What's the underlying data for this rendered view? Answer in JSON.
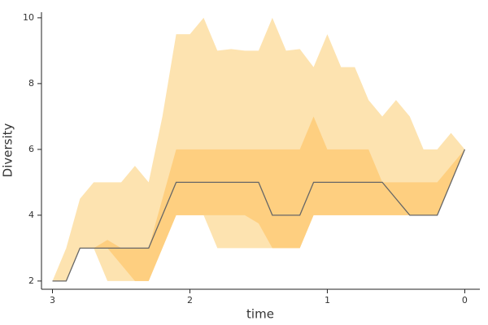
{
  "chart_data": {
    "type": "band",
    "xlabel": "time",
    "ylabel": "Diversity",
    "x": [
      3.0,
      2.9,
      2.8,
      2.7,
      2.6,
      2.5,
      2.4,
      2.3,
      2.2,
      2.1,
      2.0,
      1.9,
      1.8,
      1.7,
      1.6,
      1.5,
      1.4,
      1.3,
      1.2,
      1.1,
      1.0,
      0.9,
      0.8,
      0.7,
      0.6,
      0.5,
      0.4,
      0.3,
      0.2,
      0.1,
      0.0
    ],
    "bands": [
      {
        "color": "#fde3b0",
        "upper": [
          2,
          3,
          4.5,
          5,
          5,
          5,
          5.5,
          5,
          7,
          9.5,
          9.5,
          10,
          9,
          9.05,
          9,
          9,
          10,
          9,
          9.05,
          8.5,
          9.5,
          8.5,
          8.5,
          7.5,
          7,
          7.5,
          7,
          6,
          6,
          6.5,
          6
        ],
        "lower": [
          2,
          2,
          3,
          3,
          2,
          2,
          2,
          2,
          3,
          4,
          4,
          4,
          3,
          3,
          3,
          3,
          3,
          3,
          3,
          4,
          4,
          4,
          4,
          4,
          4,
          4,
          4,
          4,
          4,
          5,
          6
        ]
      },
      {
        "color": "#fecf80",
        "upper": [
          2,
          2,
          3,
          3,
          3.25,
          3,
          3,
          3,
          4.5,
          6,
          6,
          6,
          6,
          6,
          6,
          6,
          6,
          6,
          6,
          7,
          6,
          6,
          6,
          6,
          5,
          5,
          5,
          5,
          5,
          5.5,
          6
        ],
        "lower": [
          2,
          2,
          3,
          3,
          3,
          2.5,
          2,
          2,
          3,
          4,
          4,
          4,
          4,
          4,
          4,
          3.75,
          3,
          3,
          3,
          4,
          4,
          4,
          4,
          4,
          4,
          4,
          4,
          4,
          4,
          5,
          6
        ]
      }
    ],
    "series": [
      {
        "color": "#666666",
        "values": [
          2,
          2,
          3,
          3,
          3,
          3,
          3,
          3,
          4,
          5,
          5,
          5,
          5,
          5,
          5,
          5,
          4,
          4,
          4,
          5,
          5,
          5,
          5,
          5,
          5,
          4.5,
          4,
          4,
          4,
          5,
          6
        ]
      }
    ],
    "xlim": [
      3.08,
      -0.11
    ],
    "ylim": [
      1.75,
      10.17
    ],
    "xticks": [
      3,
      2,
      1,
      0
    ],
    "yticks": [
      2,
      4,
      6,
      8,
      10
    ]
  }
}
